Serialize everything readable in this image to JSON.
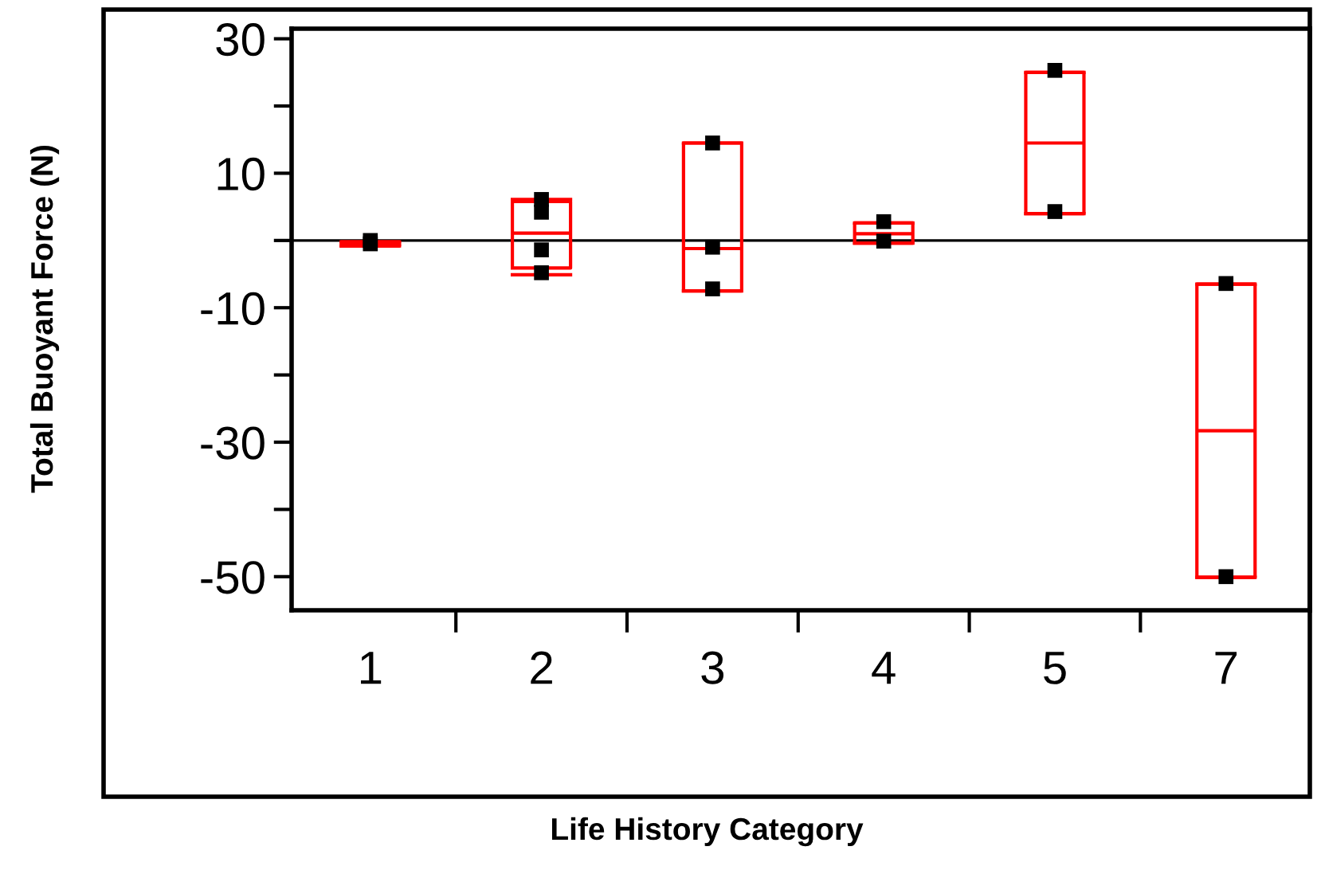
{
  "chart_data": {
    "type": "box",
    "xlabel": "Life History Category",
    "ylabel": "Total Buoyant Force (N)",
    "categories": [
      "1",
      "2",
      "3",
      "4",
      "5",
      "7"
    ],
    "boxes": [
      {
        "low": -0.8,
        "q1": -0.8,
        "median": -0.5,
        "q3": -0.2,
        "high": -0.2
      },
      {
        "low": -5.1,
        "q1": -4.1,
        "median": 1.1,
        "q3": 5.8,
        "high": 6.1
      },
      {
        "low": -7.5,
        "q1": -7.5,
        "median": -1.2,
        "q3": 14.5,
        "high": 14.5
      },
      {
        "low": -0.4,
        "q1": -0.4,
        "median": 1.0,
        "q3": 2.6,
        "high": 2.6
      },
      {
        "low": 4.0,
        "q1": 4.0,
        "median": 14.5,
        "q3": 25.0,
        "high": 25.0
      },
      {
        "low": -50.1,
        "q1": -50.1,
        "median": -28.3,
        "q3": -6.5,
        "high": -6.5
      }
    ],
    "color": "#ff0000",
    "series": [
      {
        "type": "scatter",
        "color": "#000000",
        "marker": "square",
        "x": [
          "1",
          "1",
          "2",
          "2",
          "2",
          "2",
          "3",
          "3",
          "3",
          "4",
          "4",
          "5",
          "5",
          "7",
          "7"
        ],
        "values": [
          0,
          -0.5,
          6.1,
          4.2,
          -1.4,
          -4.8,
          14.5,
          -1.0,
          -7.2,
          2.8,
          -0.1,
          25.3,
          4.3,
          -6.4,
          -50.0
        ]
      }
    ],
    "ref_lines": [
      {
        "axis": "y",
        "value": 0,
        "color": "#000000"
      }
    ],
    "ylim": [
      -55,
      31.5
    ],
    "yticks": [
      30,
      {
        "value": 20,
        "label": null
      },
      10,
      {
        "value": 0,
        "label": null
      },
      -10,
      {
        "value": -20,
        "label": null
      },
      -30,
      {
        "value": -40,
        "label": null
      },
      -50
    ],
    "grid": false
  }
}
